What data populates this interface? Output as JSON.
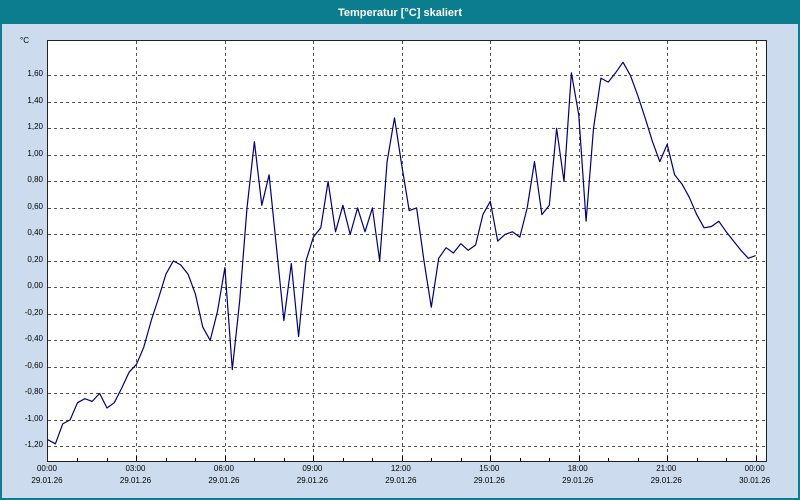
{
  "window": {
    "title": "Temperatur [°C] skaliert"
  },
  "colors": {
    "titlebar": "#0c7d8e",
    "frame_background": "#ccdbed",
    "plot_background": "#ffffff",
    "line": "#000080",
    "grid": "#555555"
  },
  "chart_data": {
    "type": "line",
    "title": "Temperatur [°C] skaliert",
    "y_unit": "°C",
    "ylim": [
      -1.31,
      1.86
    ],
    "x_max_hours": 24.35,
    "grid": "dashed",
    "legend": "none",
    "yticks": [
      {
        "value": 1.6,
        "label": "1,60"
      },
      {
        "value": 1.4,
        "label": "1,40"
      },
      {
        "value": 1.2,
        "label": "1,20"
      },
      {
        "value": 1.0,
        "label": "1,00"
      },
      {
        "value": 0.8,
        "label": "0,80"
      },
      {
        "value": 0.6,
        "label": "0,60"
      },
      {
        "value": 0.4,
        "label": "0,40"
      },
      {
        "value": 0.2,
        "label": "0,20"
      },
      {
        "value": 0.0,
        "label": "0,00"
      },
      {
        "value": -0.2,
        "label": "-0,20"
      },
      {
        "value": -0.4,
        "label": "-0,40"
      },
      {
        "value": -0.6,
        "label": "-0,60"
      },
      {
        "value": -0.8,
        "label": "-0,80"
      },
      {
        "value": -1.0,
        "label": "-1,00"
      },
      {
        "value": -1.2,
        "label": "-1,20"
      }
    ],
    "xticks": [
      {
        "hour": 0,
        "time": "00:00",
        "date": "29.01.26"
      },
      {
        "hour": 3,
        "time": "03:00",
        "date": "29.01.26"
      },
      {
        "hour": 6,
        "time": "06:00",
        "date": "29.01.26"
      },
      {
        "hour": 9,
        "time": "09:00",
        "date": "29.01.26"
      },
      {
        "hour": 12,
        "time": "12:00",
        "date": "29.01.26"
      },
      {
        "hour": 15,
        "time": "15:00",
        "date": "29.01.26"
      },
      {
        "hour": 18,
        "time": "18:00",
        "date": "29.01.26"
      },
      {
        "hour": 21,
        "time": "21:00",
        "date": "29.01.26"
      },
      {
        "hour": 24,
        "time": "00:00",
        "date": "30.01.26"
      }
    ],
    "series": [
      {
        "name": "Temperatur",
        "color": "#000080",
        "x_start_hours": 0,
        "x_step_hours": 0.25,
        "values": [
          -1.15,
          -1.18,
          -1.03,
          -1.0,
          -0.87,
          -0.84,
          -0.86,
          -0.8,
          -0.91,
          -0.87,
          -0.76,
          -0.64,
          -0.58,
          -0.45,
          -0.25,
          -0.08,
          0.1,
          0.2,
          0.17,
          0.1,
          -0.05,
          -0.3,
          -0.4,
          -0.18,
          0.15,
          -0.62,
          -0.1,
          0.6,
          1.1,
          0.62,
          0.85,
          0.3,
          -0.25,
          0.18,
          -0.37,
          0.2,
          0.38,
          0.45,
          0.8,
          0.42,
          0.62,
          0.4,
          0.6,
          0.42,
          0.6,
          0.2,
          0.95,
          1.28,
          0.92,
          0.58,
          0.6,
          0.2,
          -0.15,
          0.22,
          0.3,
          0.26,
          0.33,
          0.28,
          0.32,
          0.55,
          0.65,
          0.35,
          0.4,
          0.42,
          0.38,
          0.6,
          0.95,
          0.55,
          0.62,
          1.2,
          0.8,
          1.62,
          1.3,
          0.5,
          1.2,
          1.58,
          1.55,
          1.62,
          1.7,
          1.6,
          1.45,
          1.28,
          1.1,
          0.95,
          1.08,
          0.85,
          0.78,
          0.68,
          0.55,
          0.45,
          0.46,
          0.5,
          0.42,
          0.35,
          0.28,
          0.22,
          0.24
        ]
      }
    ]
  }
}
